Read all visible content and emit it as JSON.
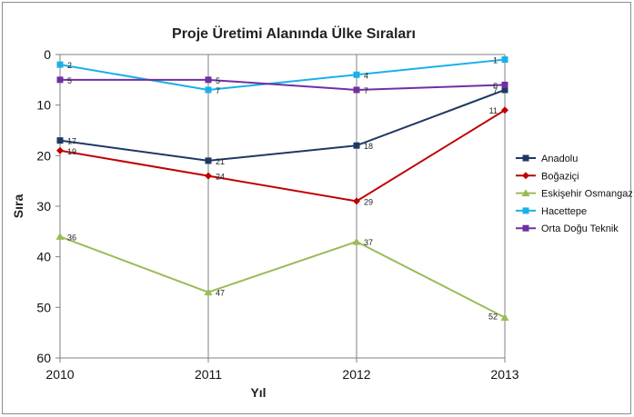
{
  "chart_data": {
    "type": "line",
    "title": "Proje Üretimi Alanında Ülke Sıraları",
    "xlabel": "Yıl",
    "ylabel": "Sıra",
    "x": [
      "2010",
      "2011",
      "2012",
      "2013"
    ],
    "y_ticks": [
      "0",
      "10",
      "20",
      "30",
      "40",
      "50",
      "60"
    ],
    "ylim": [
      0,
      60
    ],
    "y_inverted": true,
    "grid": "vertical",
    "legend_position": "right",
    "series": [
      {
        "name": "Anadolu",
        "values": [
          17,
          21,
          18,
          7
        ],
        "labels": [
          "17",
          "21",
          "18",
          "7"
        ],
        "color": "#1f3864",
        "marker": "square"
      },
      {
        "name": "Boğaziçi",
        "values": [
          19,
          24,
          29,
          11
        ],
        "labels": [
          "19",
          "24",
          "29",
          "11"
        ],
        "color": "#c00000",
        "marker": "diamond"
      },
      {
        "name": "Eskişehir Osmangazi",
        "values": [
          36,
          47,
          37,
          52
        ],
        "labels": [
          "36",
          "47",
          "37",
          "52"
        ],
        "color": "#9bbb59",
        "marker": "triangle"
      },
      {
        "name": "Hacettepe",
        "values": [
          2,
          7,
          4,
          1
        ],
        "labels": [
          "2",
          "7",
          "4",
          "1"
        ],
        "color": "#1ab0e8",
        "marker": "square"
      },
      {
        "name": "Orta Doğu Teknik",
        "values": [
          5,
          5,
          7,
          6
        ],
        "labels": [
          "5",
          "5",
          "7",
          "6"
        ],
        "color": "#7030a0",
        "marker": "square"
      }
    ]
  }
}
